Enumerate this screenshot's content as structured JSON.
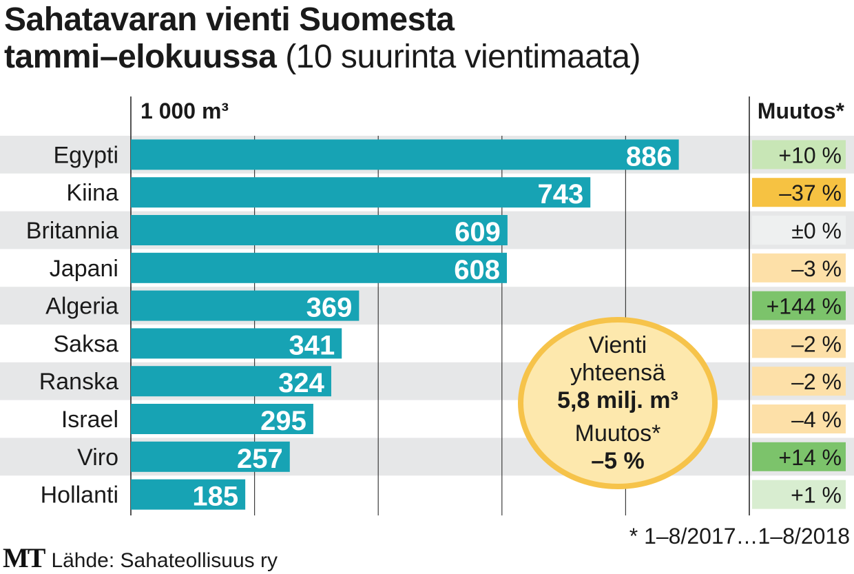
{
  "header": {
    "title_line1": "Sahatavaran vienti Suomesta",
    "title_line2": "tammi–elokuussa",
    "title_paren": "(10 suurinta vientimaata)"
  },
  "chart_data": {
    "type": "bar",
    "orientation": "horizontal",
    "unit_label": "1 000 m³",
    "change_header": "Muutos*",
    "categories": [
      "Egypti",
      "Kiina",
      "Britannia",
      "Japani",
      "Algeria",
      "Saksa",
      "Ranska",
      "Israel",
      "Viro",
      "Hollanti"
    ],
    "values": [
      886,
      743,
      609,
      608,
      369,
      341,
      324,
      295,
      257,
      185
    ],
    "value_labels": [
      "886",
      "743",
      "609",
      "608",
      "369",
      "341",
      "324",
      "295",
      "257",
      "185"
    ],
    "changes": [
      "+10 %",
      "–37 %",
      "±0 %",
      "–3 %",
      "+144 %",
      "–2 %",
      "–2 %",
      "–4 %",
      "+14 %",
      "+1 %"
    ],
    "xlim": [
      0,
      1000
    ],
    "grid": true,
    "colors": {
      "bar": "#17a3b4",
      "row_band": "#e6e7e8",
      "change_strong_positive": "#7cc36b",
      "change_positive": "#c8e6b6",
      "change_strong_negative": "#f6c242",
      "change_negative": "#fde0a8",
      "change_neutral": "#eef0f0"
    },
    "change_colors": [
      "#c8e6b6",
      "#f6c242",
      "#eef0f0",
      "#fde0a8",
      "#7cc36b",
      "#fde0a8",
      "#fde0a8",
      "#fde0a8",
      "#7cc36b",
      "#d8edd0"
    ]
  },
  "total": {
    "line1": "Vienti",
    "line2": "yhteensä",
    "line3": "5,8 milj. m³",
    "line4": "Muutos*",
    "line5": "–5 %"
  },
  "footnote": "* 1–8/2017…1–8/2018",
  "source": {
    "logo": "MT",
    "text": "Lähde: Sahateollisuus ry"
  }
}
